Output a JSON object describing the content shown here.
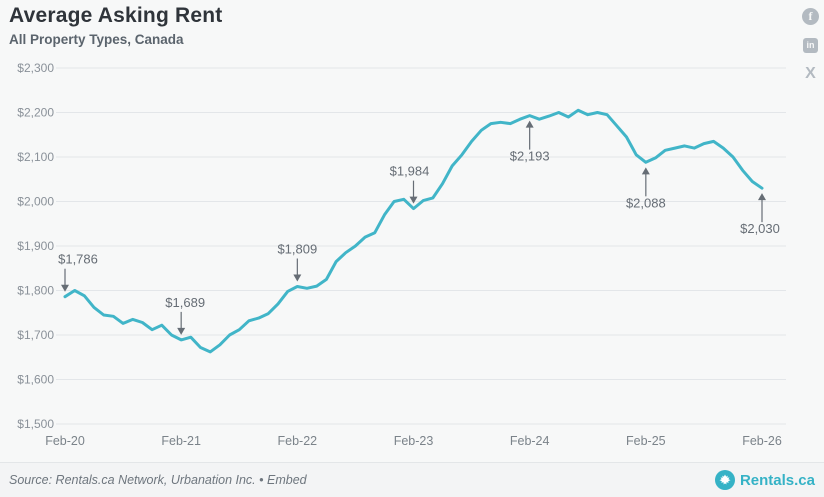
{
  "header": {
    "title": "Average Asking Rent",
    "subtitle": "All Property Types, Canada"
  },
  "share": {
    "facebook_glyph": "f",
    "linkedin_glyph": "in",
    "x_glyph": "X"
  },
  "colors": {
    "line": "#41b5c8",
    "grid": "#e3e6e9",
    "background": "#f7f8f8",
    "annotation_text": "#666d75",
    "y_label": "#8a9199",
    "x_label": "#7b838a",
    "brand_teal": "#35b2c6"
  },
  "chart_data": {
    "type": "line",
    "title": "Average Asking Rent",
    "subtitle": "All Property Types, Canada",
    "frequency": "monthly",
    "x_start": "Feb-20",
    "x_end": "Feb-26",
    "x_tick_labels": [
      "Feb-20",
      "Feb-21",
      "Feb-22",
      "Feb-23",
      "Feb-24",
      "Feb-25",
      "Feb-26"
    ],
    "x_tick_indices": [
      0,
      12,
      24,
      36,
      48,
      60,
      72
    ],
    "ylim": [
      1500,
      2300
    ],
    "y_ticks": [
      1500,
      1600,
      1700,
      1800,
      1900,
      2000,
      2100,
      2200,
      2300
    ],
    "y_tick_labels": [
      "$1,500",
      "$1,600",
      "$1,700",
      "$1,800",
      "$1,900",
      "$2,000",
      "$2,100",
      "$2,200",
      "$2,300"
    ],
    "grid": true,
    "legend": "none",
    "line_color": "#41b5c8",
    "values": [
      1786,
      1800,
      1788,
      1762,
      1745,
      1742,
      1726,
      1735,
      1728,
      1712,
      1722,
      1700,
      1689,
      1695,
      1672,
      1662,
      1678,
      1700,
      1712,
      1732,
      1738,
      1748,
      1770,
      1798,
      1809,
      1805,
      1810,
      1825,
      1865,
      1885,
      1900,
      1920,
      1930,
      1970,
      2000,
      2005,
      1984,
      2002,
      2008,
      2040,
      2080,
      2105,
      2135,
      2160,
      2175,
      2178,
      2175,
      2185,
      2193,
      2185,
      2192,
      2200,
      2190,
      2205,
      2195,
      2200,
      2195,
      2170,
      2145,
      2105,
      2088,
      2098,
      2115,
      2120,
      2125,
      2120,
      2130,
      2135,
      2120,
      2100,
      2070,
      2045,
      2030
    ],
    "annotations": [
      {
        "label": "$1,786",
        "index": 0,
        "value": 1786,
        "side": "above",
        "dx": 13
      },
      {
        "label": "$1,689",
        "index": 12,
        "value": 1689,
        "side": "above",
        "dx": 4
      },
      {
        "label": "$1,809",
        "index": 24,
        "value": 1809,
        "side": "above",
        "dx": 0
      },
      {
        "label": "$1,984",
        "index": 36,
        "value": 1984,
        "side": "above",
        "dx": -4
      },
      {
        "label": "$2,193",
        "index": 48,
        "value": 2193,
        "side": "below",
        "dx": 0
      },
      {
        "label": "$2,088",
        "index": 60,
        "value": 2088,
        "side": "below",
        "dx": 0
      },
      {
        "label": "$2,030",
        "index": 72,
        "value": 2030,
        "side": "below",
        "dx": -2
      }
    ]
  },
  "footer": {
    "source": "Source: Rentals.ca Network, Urbanation Inc.",
    "separator": "•",
    "embed_label": "Embed",
    "brand": "Rentals.ca"
  }
}
